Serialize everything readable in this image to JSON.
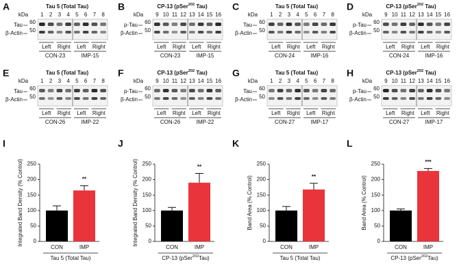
{
  "blots": [
    {
      "letter": "A",
      "title": [
        "Tau 5 (Total Tau)"
      ],
      "kda": "kDa",
      "lanes": [
        "1",
        "2",
        "3",
        "4",
        "5",
        "6",
        "7",
        "8"
      ],
      "markers": [
        "60",
        "50"
      ],
      "rows": [
        "Tau",
        "β-Actin"
      ],
      "sides": [
        "Left",
        "Right",
        "Left",
        "Right"
      ],
      "groups": [
        "CON-23",
        "IMP-15"
      ]
    },
    {
      "letter": "B",
      "title": [
        "CP-13 (pSer",
        "202",
        " Tau)"
      ],
      "kda": "kDa",
      "lanes": [
        "9",
        "10",
        "11",
        "12",
        "13",
        "14",
        "15",
        "16"
      ],
      "markers": [
        "60",
        "50"
      ],
      "rows": [
        "p-Tau",
        "β-Actin"
      ],
      "sides": [
        "Left",
        "Right",
        "Left",
        "Right"
      ],
      "groups": [
        "CON-23",
        "IMP-15"
      ]
    },
    {
      "letter": "C",
      "title": [
        "Tau 5 (Total Tau)"
      ],
      "kda": "kDa",
      "lanes": [
        "1",
        "2",
        "3",
        "4",
        "5",
        "6",
        "7",
        "8"
      ],
      "markers": [
        "60",
        "50"
      ],
      "rows": [
        "Tau",
        "β-Actin"
      ],
      "sides": [
        "Left",
        "Right",
        "Left",
        "Right"
      ],
      "groups": [
        "CON-24",
        "IMP-16"
      ]
    },
    {
      "letter": "D",
      "title": [
        "CP-13 (pSer",
        "202",
        " Tau)"
      ],
      "kda": "kDa",
      "lanes": [
        "9",
        "10",
        "11",
        "12",
        "13",
        "14",
        "15",
        "16"
      ],
      "markers": [
        "60",
        "50"
      ],
      "rows": [
        "p-Tau",
        "β-Actin"
      ],
      "sides": [
        "Left",
        "Right",
        "Left",
        "Right"
      ],
      "groups": [
        "CON-24",
        "IMP-16"
      ]
    },
    {
      "letter": "E",
      "title": [
        "Tau 5 (Total Tau)"
      ],
      "kda": "kDa",
      "lanes": [
        "1",
        "2",
        "3",
        "4",
        "5",
        "6",
        "7",
        "8"
      ],
      "markers": [
        "60",
        "50"
      ],
      "rows": [
        "Tau",
        "β-Actin"
      ],
      "sides": [
        "Left",
        "Right",
        "Left",
        "Right"
      ],
      "groups": [
        "CON-26",
        "IMP-22"
      ]
    },
    {
      "letter": "F",
      "title": [
        "CP-13 (pSer",
        "202",
        " Tau)"
      ],
      "kda": "kDa",
      "lanes": [
        "9",
        "10",
        "11",
        "12",
        "13",
        "14",
        "15",
        "16"
      ],
      "markers": [
        "60",
        "50"
      ],
      "rows": [
        "p-Tau",
        "β-Actin"
      ],
      "sides": [
        "Left",
        "Right",
        "Left",
        "Right"
      ],
      "groups": [
        "CON-26",
        "IMP-22"
      ]
    },
    {
      "letter": "G",
      "title": [
        "Tau 5 (Total Tau)"
      ],
      "kda": "kDa",
      "lanes": [
        "1",
        "2",
        "3",
        "4",
        "5",
        "6",
        "7",
        "8"
      ],
      "markers": [
        "60",
        "50"
      ],
      "rows": [
        "Tau",
        "β-Actin"
      ],
      "sides": [
        "Left",
        "Right",
        "Left",
        "Right"
      ],
      "groups": [
        "CON-27",
        "IMP-17"
      ]
    },
    {
      "letter": "H",
      "title": [
        "CP-13 (pSer",
        "202",
        " Tau)"
      ],
      "kda": "kDa",
      "lanes": [
        "9",
        "10",
        "11",
        "12",
        "13",
        "14",
        "15",
        "16"
      ],
      "markers": [
        "60",
        "50"
      ],
      "rows": [
        "p-Tau",
        "β-Actin"
      ],
      "sides": [
        "Left",
        "Right",
        "Left",
        "Right"
      ],
      "groups": [
        "CON-27",
        "IMP-17"
      ]
    }
  ],
  "chart_data": [
    {
      "type": "bar",
      "letter": "I",
      "ylabel": "Integrated Band Density (% Control)",
      "categories": [
        "CON",
        "IMP"
      ],
      "values": [
        100,
        165
      ],
      "errors": [
        15,
        15
      ],
      "colors": [
        "#000000",
        "#e8343a"
      ],
      "ylim": [
        0,
        250
      ],
      "yticks": [
        0,
        50,
        100,
        150,
        200,
        250
      ],
      "significance": "**",
      "xlabel": [
        "Tau 5 (Total Tau)"
      ]
    },
    {
      "type": "bar",
      "letter": "J",
      "ylabel": "Integrated Band Density (% Control)",
      "categories": [
        "CON",
        "IMP"
      ],
      "values": [
        100,
        190
      ],
      "errors": [
        10,
        30
      ],
      "colors": [
        "#000000",
        "#e8343a"
      ],
      "ylim": [
        0,
        250
      ],
      "yticks": [
        0,
        50,
        100,
        150,
        200,
        250
      ],
      "significance": "**",
      "xlabel": [
        "CP-13 (pSer",
        "202",
        "Tau)"
      ]
    },
    {
      "type": "bar",
      "letter": "K",
      "ylabel": "Band Area (% Control)",
      "categories": [
        "CON",
        "IMP"
      ],
      "values": [
        100,
        168
      ],
      "errors": [
        13,
        20
      ],
      "colors": [
        "#000000",
        "#e8343a"
      ],
      "ylim": [
        0,
        250
      ],
      "yticks": [
        0,
        50,
        100,
        150,
        200,
        250
      ],
      "significance": "**",
      "xlabel": [
        "Tau 5 (Total Tau)"
      ]
    },
    {
      "type": "bar",
      "letter": "L",
      "ylabel": "Band Area (% Control)",
      "categories": [
        "CON",
        "IMP"
      ],
      "values": [
        100,
        228
      ],
      "errors": [
        5,
        8
      ],
      "colors": [
        "#000000",
        "#e8343a"
      ],
      "ylim": [
        0,
        250
      ],
      "yticks": [
        0,
        50,
        100,
        150,
        200,
        250
      ],
      "significance": "***",
      "xlabel": [
        "CP-13 (pSer",
        "202",
        "Tau)"
      ]
    }
  ]
}
